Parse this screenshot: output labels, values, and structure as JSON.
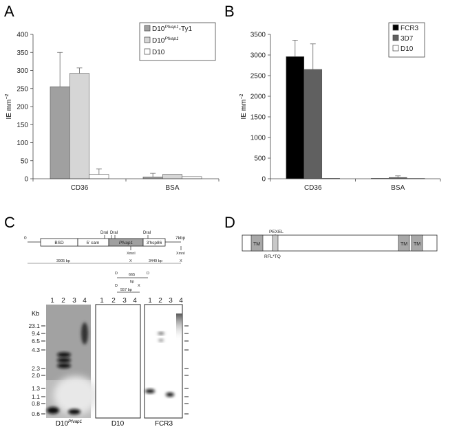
{
  "panel_letters": {
    "a": "A",
    "b": "B",
    "c": "C",
    "d": "D"
  },
  "chart_data": [
    {
      "type": "bar",
      "panel": "A",
      "categories": [
        "CD36",
        "BSA"
      ],
      "ylabel_main": "IE mm",
      "ylabel_sup": "−2",
      "ylim": [
        0,
        400
      ],
      "yticks": [
        0,
        50,
        100,
        150,
        200,
        250,
        300,
        350,
        400
      ],
      "legend_position": "top-right",
      "series": [
        {
          "name_main": "D10",
          "name_sup": "Pfvap1",
          "name_tail": "-Ty1",
          "color": "#a0a0a0",
          "values": [
            255,
            5
          ],
          "errors": [
            95,
            10
          ]
        },
        {
          "name_main": "D10",
          "name_sup": "Pfvap1",
          "name_tail": "",
          "color": "#d6d6d6",
          "values": [
            292,
            12
          ],
          "errors": [
            15,
            0
          ]
        },
        {
          "name_main": "D10",
          "name_sup": "",
          "name_tail": "",
          "color": "#ffffff",
          "values": [
            12,
            6
          ],
          "errors": [
            15,
            0
          ]
        }
      ]
    },
    {
      "type": "bar",
      "panel": "B",
      "categories": [
        "CD36",
        "BSA"
      ],
      "ylabel_main": "IE mm",
      "ylabel_sup": "−2",
      "ylim": [
        0,
        3500
      ],
      "yticks": [
        0,
        500,
        1000,
        1500,
        2000,
        2500,
        3000,
        3500
      ],
      "legend_position": "top-right",
      "series": [
        {
          "name_main": "FCR3",
          "name_sup": "",
          "name_tail": "",
          "color": "#000000",
          "values": [
            2960,
            10
          ],
          "errors": [
            400,
            0
          ]
        },
        {
          "name_main": "3D7",
          "name_sup": "",
          "name_tail": "",
          "color": "#606060",
          "values": [
            2650,
            30
          ],
          "errors": [
            620,
            40
          ]
        },
        {
          "name_main": "D10",
          "name_sup": "",
          "name_tail": "",
          "color": "#ffffff",
          "values": [
            10,
            8
          ],
          "errors": [
            0,
            0
          ]
        }
      ]
    }
  ],
  "construct": {
    "start": "0",
    "end": "7kbp",
    "boxes": [
      "BSD",
      "5' cam",
      "Pfvap1",
      "3'hsp86"
    ],
    "sites_top": [
      "DraI",
      "DraI",
      "DraI"
    ],
    "sites_bottom": [
      "XmnI",
      "XmnI"
    ],
    "fragments": [
      "3905 bp",
      "3449 bp"
    ],
    "probe_1": {
      "left": "D",
      "right": "D",
      "label": "665",
      "unit": "bp"
    },
    "probe_2": {
      "left": "D",
      "right": "X",
      "label": "557 bp"
    },
    "mark_x": "X"
  },
  "blot": {
    "kb_label": "Kb",
    "markers": [
      "23.1",
      "9.4",
      "6.5",
      "4.3",
      "2.3",
      "2.0",
      "1.3",
      "1.1",
      "0.8",
      "0.6"
    ],
    "lanes": [
      "1",
      "2",
      "3",
      "4"
    ],
    "panel_labels_main": [
      "D10",
      "D10",
      "FCR3"
    ],
    "panel_labels_sup": [
      "Pfvap1",
      "",
      ""
    ]
  },
  "protein": {
    "pexel": "PEXEL",
    "motif": "RFL*TQ",
    "tm": [
      "TM",
      "TM",
      "TM"
    ]
  }
}
